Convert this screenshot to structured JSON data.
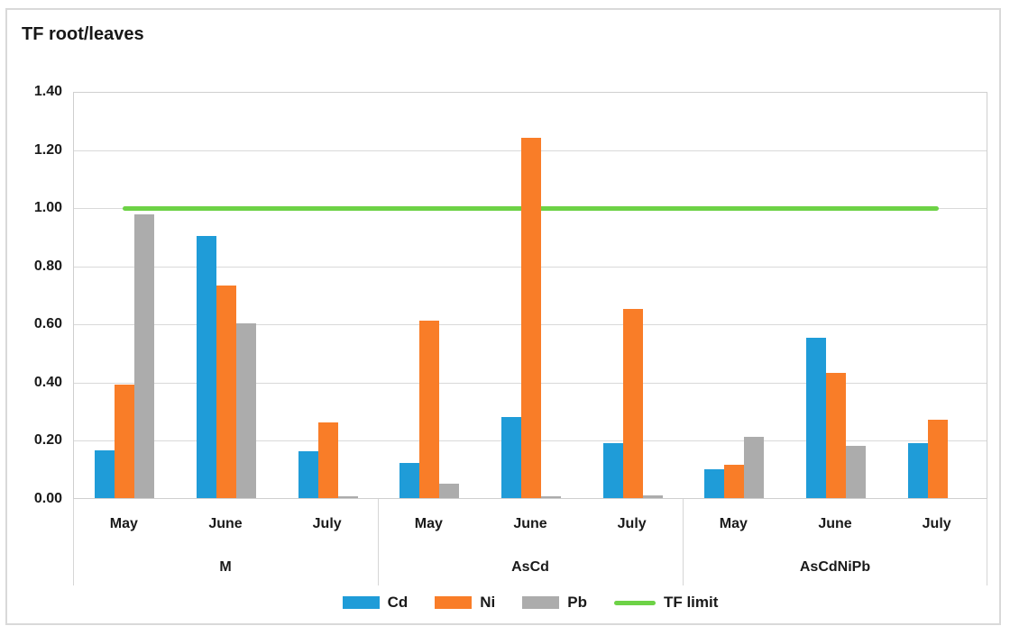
{
  "figure": {
    "title": "TF root/leaves"
  },
  "chart_data": {
    "type": "bar",
    "title": "TF root/leaves",
    "ylim": [
      0,
      1.4
    ],
    "ytick_labels": [
      "1.40",
      "1.20",
      "1.00",
      "0.80",
      "0.60",
      "0.40",
      "0.20",
      "0.00"
    ],
    "grid": true,
    "legend_position": "bottom",
    "groups": [
      "M",
      "AsCd",
      "AsCdNiPb"
    ],
    "categories": [
      "May",
      "June",
      "July",
      "May",
      "June",
      "July",
      "May",
      "June",
      "July"
    ],
    "series": [
      {
        "name": "Cd",
        "color": "#1f9cd8",
        "values": [
          0.165,
          0.9,
          0.16,
          0.12,
          0.28,
          0.19,
          0.1,
          0.55,
          0.19
        ]
      },
      {
        "name": "Ni",
        "color": "#f97d28",
        "values": [
          0.39,
          0.73,
          0.26,
          0.61,
          1.24,
          0.65,
          0.115,
          0.43,
          0.27
        ]
      },
      {
        "name": "Pb",
        "color": "#acacac",
        "values": [
          0.975,
          0.6,
          0.005,
          0.05,
          0.005,
          0.01,
          0.21,
          0.18,
          0
        ]
      }
    ],
    "ref_line": {
      "name": "TF limit",
      "value": 1.0,
      "color": "#6dd246"
    },
    "colors": {
      "gridline": "#d9d9d9",
      "text": "#1a1a1a"
    }
  }
}
